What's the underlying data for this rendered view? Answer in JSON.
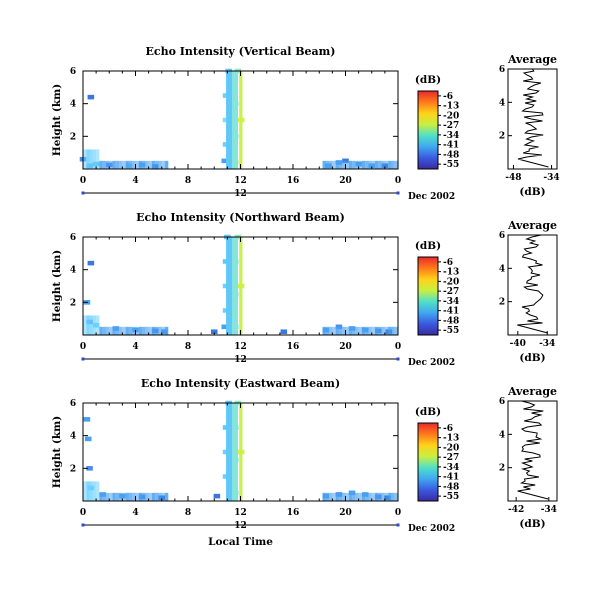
{
  "chart_data": [
    {
      "type": "heatmap",
      "title": "Echo Intensity (Vertical Beam)",
      "ylabel": "Height (km)",
      "y_ticks": [
        "6",
        "4",
        "2"
      ],
      "x_ticks": [
        "0",
        "4",
        "8",
        "12",
        "16",
        "20",
        "0"
      ],
      "date_marker": "12",
      "date_label": "Dec 2002",
      "xlim": [
        0,
        24
      ],
      "ylim": [
        0,
        6
      ],
      "cells": [
        [
          0.0,
          0.6,
          "#4a8cf0"
        ],
        [
          0.5,
          0.2,
          "#4aa0f0"
        ],
        [
          1.0,
          0.3,
          "#5ac0f0"
        ],
        [
          2.0,
          0.25,
          "#4a8cf0"
        ],
        [
          3.5,
          0.2,
          "#7ad8e8"
        ],
        [
          4.5,
          0.25,
          "#4aa0f0"
        ],
        [
          5.5,
          0.15,
          "#2a6ad8"
        ],
        [
          0.6,
          4.4,
          "#3a78e0"
        ],
        [
          10.8,
          0.5,
          "#4aa0f0"
        ],
        [
          10.9,
          1.5,
          "#6ad0ff"
        ],
        [
          10.9,
          3.0,
          "#7ae0ff"
        ],
        [
          10.9,
          4.5,
          "#6ad0ff"
        ],
        [
          11.1,
          6.0,
          "#60c8f8"
        ],
        [
          11.6,
          0.4,
          "#b8f070"
        ],
        [
          11.6,
          2.0,
          "#80e8d0"
        ],
        [
          11.6,
          4.0,
          "#80e8d0"
        ],
        [
          11.8,
          6.0,
          "#90ecc0"
        ],
        [
          12.05,
          3.0,
          "#d8f040"
        ],
        [
          18.7,
          0.2,
          "#4aa0f0"
        ],
        [
          19.5,
          0.4,
          "#4aa0f0"
        ],
        [
          20.0,
          0.5,
          "#3a78e0"
        ],
        [
          21.0,
          0.3,
          "#4aa0f0"
        ],
        [
          22.0,
          0.2,
          "#4aa0f0"
        ],
        [
          23.0,
          0.2,
          "#2a6ad8"
        ]
      ],
      "colorbar": {
        "unit": "(dB)",
        "labels": [
          "-6",
          "-13",
          "-20",
          "-27",
          "-34",
          "-41",
          "-48",
          "-55"
        ],
        "colors": [
          "#e82a2a",
          "#ff7a1a",
          "#ffd21a",
          "#c8f040",
          "#50e0c8",
          "#40a8f0",
          "#3a5ae0",
          "#3a2aa0"
        ]
      },
      "profile": {
        "title": "Average",
        "x_ticks": [
          "-48",
          "-34"
        ],
        "xlim": [
          -50,
          -32
        ],
        "y_ticks": [
          "6",
          "4",
          "2"
        ],
        "xlabel": "(dB)"
      }
    },
    {
      "type": "heatmap",
      "title": "Echo Intensity (Northward Beam)",
      "ylabel": "Height (km)",
      "y_ticks": [
        "6",
        "4",
        "2"
      ],
      "x_ticks": [
        "0",
        "4",
        "8",
        "12",
        "16",
        "20",
        "0"
      ],
      "date_marker": "12",
      "date_label": "Dec 2002",
      "xlim": [
        0,
        24
      ],
      "ylim": [
        0,
        6
      ],
      "cells": [
        [
          0.3,
          2.0,
          "#4aa0f0"
        ],
        [
          0.5,
          0.8,
          "#4a8cf0"
        ],
        [
          1.0,
          0.6,
          "#6ad0ff"
        ],
        [
          2.5,
          0.4,
          "#4aa0f0"
        ],
        [
          4.0,
          0.3,
          "#4aa0f0"
        ],
        [
          5.5,
          0.25,
          "#3a78e0"
        ],
        [
          0.6,
          4.4,
          "#3a78e0"
        ],
        [
          6.2,
          0.2,
          "#4a8cf0"
        ],
        [
          10.0,
          0.2,
          "#3a78e0"
        ],
        [
          10.8,
          0.5,
          "#4aa0f0"
        ],
        [
          10.9,
          1.5,
          "#6ad0ff"
        ],
        [
          10.9,
          3.0,
          "#6ad0ff"
        ],
        [
          10.9,
          4.5,
          "#60c8f8"
        ],
        [
          11.0,
          6.0,
          "#60c8f8"
        ],
        [
          11.6,
          0.5,
          "#80e8d0"
        ],
        [
          11.6,
          2.5,
          "#80e8d0"
        ],
        [
          11.6,
          4.5,
          "#80e8d0"
        ],
        [
          11.8,
          6.0,
          "#90ecc0"
        ],
        [
          12.05,
          3.0,
          "#d8f040"
        ],
        [
          15.3,
          0.2,
          "#3a78e0"
        ],
        [
          18.5,
          0.3,
          "#4aa0f0"
        ],
        [
          19.5,
          0.5,
          "#4a8cf0"
        ],
        [
          20.5,
          0.4,
          "#4aa0f0"
        ],
        [
          21.5,
          0.3,
          "#4aa0f0"
        ],
        [
          22.5,
          0.25,
          "#3a78e0"
        ],
        [
          23.3,
          0.2,
          "#2a6ad8"
        ]
      ],
      "colorbar": {
        "unit": "(dB)",
        "labels": [
          "-6",
          "-13",
          "-20",
          "-27",
          "-34",
          "-41",
          "-48",
          "-55"
        ],
        "colors": [
          "#e82a2a",
          "#ff7a1a",
          "#ffd21a",
          "#c8f040",
          "#50e0c8",
          "#40a8f0",
          "#3a5ae0",
          "#3a2aa0"
        ]
      },
      "profile": {
        "title": "Average",
        "x_ticks": [
          "-40",
          "-34"
        ],
        "xlim": [
          -42,
          -32
        ],
        "y_ticks": [
          "6",
          "4",
          "2"
        ],
        "xlabel": "(dB)"
      }
    },
    {
      "type": "heatmap",
      "title": "Echo Intensity (Eastward Beam)",
      "ylabel": "Height (km)",
      "y_ticks": [
        "6",
        "4",
        "2"
      ],
      "x_ticks": [
        "0",
        "4",
        "8",
        "12",
        "16",
        "20",
        "0"
      ],
      "date_marker": "12",
      "date_label": "Dec 2002",
      "xlabel": "Local Time",
      "xlim": [
        0,
        24
      ],
      "ylim": [
        0,
        6
      ],
      "cells": [
        [
          0.3,
          5.0,
          "#4aa0f0"
        ],
        [
          0.4,
          3.8,
          "#4aa0f0"
        ],
        [
          0.5,
          2.0,
          "#4a8cf0"
        ],
        [
          0.6,
          0.8,
          "#6ad0ff"
        ],
        [
          1.5,
          0.4,
          "#4aa0f0"
        ],
        [
          3.0,
          0.3,
          "#4aa0f0"
        ],
        [
          4.5,
          0.25,
          "#3a78e0"
        ],
        [
          6.0,
          0.2,
          "#2a6ad8"
        ],
        [
          10.2,
          0.3,
          "#3a78e0"
        ],
        [
          10.9,
          1.5,
          "#6ad0ff"
        ],
        [
          10.9,
          3.0,
          "#6ad0ff"
        ],
        [
          10.9,
          4.5,
          "#60c8f8"
        ],
        [
          11.1,
          6.0,
          "#60c8f8"
        ],
        [
          11.6,
          0.5,
          "#80e8d0"
        ],
        [
          11.6,
          2.5,
          "#80e8d0"
        ],
        [
          11.6,
          4.5,
          "#80e8d0"
        ],
        [
          11.8,
          6.0,
          "#90ecc0"
        ],
        [
          12.05,
          3.0,
          "#d8f040"
        ],
        [
          18.5,
          0.3,
          "#4aa0f0"
        ],
        [
          19.5,
          0.4,
          "#4a8cf0"
        ],
        [
          20.5,
          0.5,
          "#4aa0f0"
        ],
        [
          21.5,
          0.4,
          "#4aa0f0"
        ],
        [
          22.5,
          0.25,
          "#3a78e0"
        ],
        [
          23.2,
          0.2,
          "#2a6ad8"
        ]
      ],
      "colorbar": {
        "unit": "(dB)",
        "labels": [
          "-6",
          "-13",
          "-20",
          "-27",
          "-34",
          "-41",
          "-48",
          "-55"
        ],
        "colors": [
          "#e82a2a",
          "#ff7a1a",
          "#ffd21a",
          "#c8f040",
          "#50e0c8",
          "#40a8f0",
          "#3a5ae0",
          "#3a2aa0"
        ]
      },
      "profile": {
        "title": "Average",
        "x_ticks": [
          "-42",
          "-34"
        ],
        "xlim": [
          -44,
          -32
        ],
        "y_ticks": [
          "6",
          "4",
          "2"
        ],
        "xlabel": "(dB)"
      }
    }
  ]
}
